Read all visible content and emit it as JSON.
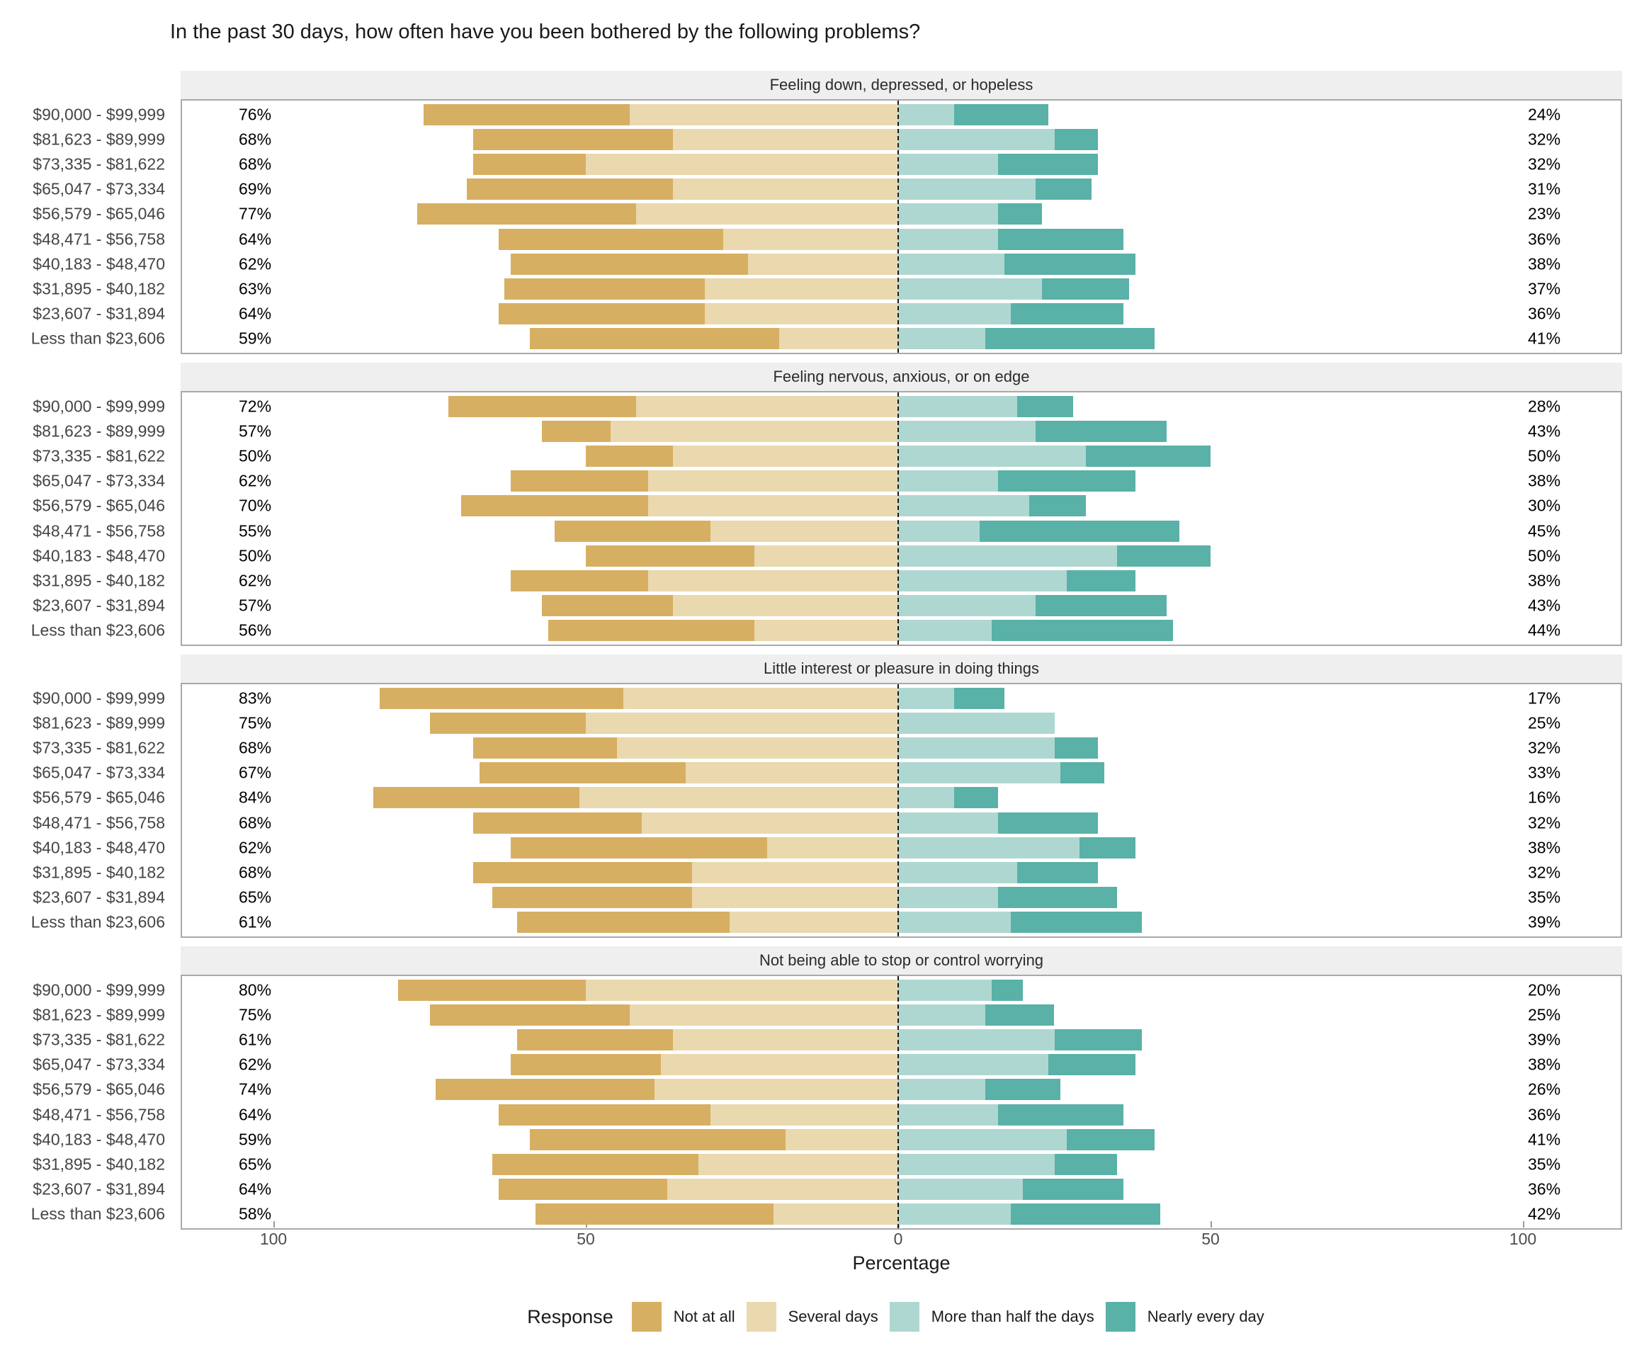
{
  "title": "In the past 30 days, how often have you been bothered by the following problems?",
  "axis": {
    "xlabel": "Percentage",
    "tick_labels": [
      "100",
      "50",
      "0",
      "50",
      "100"
    ],
    "tick_values": [
      -100,
      -50,
      0,
      50,
      100
    ]
  },
  "legend": {
    "title": "Response",
    "items": [
      {
        "key": "not_at_all",
        "label": "Not at all",
        "color": "#D7AF63"
      },
      {
        "key": "several_days",
        "label": "Several days",
        "color": "#EAD8AE"
      },
      {
        "key": "more_than_half_the_days",
        "label": "More than half the days",
        "color": "#AFD7D1"
      },
      {
        "key": "nearly_every_day",
        "label": "Nearly every day",
        "color": "#59B1A7"
      }
    ]
  },
  "style_colors": {
    "panel_header_bg": "#EFEFEF",
    "panel_border": "#A9A9A9",
    "zero_line": "#1a1a1a",
    "income_label": "#454545",
    "tick_label": "#4d4d4d"
  },
  "chart_data": {
    "type": "bar",
    "subtype": "diverging-stacked-likert",
    "unit": "percent",
    "orientation": "horizontal",
    "x_axis": {
      "label": "Percentage",
      "left_max": 100,
      "right_max": 100,
      "center": 0
    },
    "categories": [
      "$90,000 - $99,999",
      "$81,623 - $89,999",
      "$73,335 - $81,622",
      "$65,047 - $73,334",
      "$56,579 - $65,046",
      "$48,471 - $56,758",
      "$40,183 - $48,470",
      "$31,895 - $40,182",
      "$23,607 - $31,894",
      "Less than $23,606"
    ],
    "series_order": [
      "not_at_all",
      "several_days",
      "more_than_half_the_days",
      "nearly_every_day"
    ],
    "left_side_series": [
      "not_at_all",
      "several_days"
    ],
    "right_side_series": [
      "more_than_half_the_days",
      "nearly_every_day"
    ],
    "panels": [
      {
        "question": "Feeling down, depressed, or hopeless",
        "rows": [
          {
            "income": "$90,000 - $99,999",
            "left_label": "76%",
            "right_label": "24%",
            "not_at_all": 33,
            "several_days": 43,
            "more_than_half_the_days": 9,
            "nearly_every_day": 15
          },
          {
            "income": "$81,623 - $89,999",
            "left_label": "68%",
            "right_label": "32%",
            "not_at_all": 32,
            "several_days": 36,
            "more_than_half_the_days": 25,
            "nearly_every_day": 7
          },
          {
            "income": "$73,335 - $81,622",
            "left_label": "68%",
            "right_label": "32%",
            "not_at_all": 18,
            "several_days": 50,
            "more_than_half_the_days": 16,
            "nearly_every_day": 16
          },
          {
            "income": "$65,047 - $73,334",
            "left_label": "69%",
            "right_label": "31%",
            "not_at_all": 33,
            "several_days": 36,
            "more_than_half_the_days": 22,
            "nearly_every_day": 9
          },
          {
            "income": "$56,579 - $65,046",
            "left_label": "77%",
            "right_label": "23%",
            "not_at_all": 35,
            "several_days": 42,
            "more_than_half_the_days": 16,
            "nearly_every_day": 7
          },
          {
            "income": "$48,471 - $56,758",
            "left_label": "64%",
            "right_label": "36%",
            "not_at_all": 36,
            "several_days": 28,
            "more_than_half_the_days": 16,
            "nearly_every_day": 20
          },
          {
            "income": "$40,183 - $48,470",
            "left_label": "62%",
            "right_label": "38%",
            "not_at_all": 38,
            "several_days": 24,
            "more_than_half_the_days": 17,
            "nearly_every_day": 21
          },
          {
            "income": "$31,895 - $40,182",
            "left_label": "63%",
            "right_label": "37%",
            "not_at_all": 32,
            "several_days": 31,
            "more_than_half_the_days": 23,
            "nearly_every_day": 14
          },
          {
            "income": "$23,607 - $31,894",
            "left_label": "64%",
            "right_label": "36%",
            "not_at_all": 33,
            "several_days": 31,
            "more_than_half_the_days": 18,
            "nearly_every_day": 18
          },
          {
            "income": "Less than $23,606",
            "left_label": "59%",
            "right_label": "41%",
            "not_at_all": 40,
            "several_days": 19,
            "more_than_half_the_days": 14,
            "nearly_every_day": 27
          }
        ]
      },
      {
        "question": "Feeling nervous, anxious, or on edge",
        "rows": [
          {
            "income": "$90,000 - $99,999",
            "left_label": "72%",
            "right_label": "28%",
            "not_at_all": 30,
            "several_days": 42,
            "more_than_half_the_days": 19,
            "nearly_every_day": 9
          },
          {
            "income": "$81,623 - $89,999",
            "left_label": "57%",
            "right_label": "43%",
            "not_at_all": 11,
            "several_days": 46,
            "more_than_half_the_days": 22,
            "nearly_every_day": 21
          },
          {
            "income": "$73,335 - $81,622",
            "left_label": "50%",
            "right_label": "50%",
            "not_at_all": 14,
            "several_days": 36,
            "more_than_half_the_days": 30,
            "nearly_every_day": 20
          },
          {
            "income": "$65,047 - $73,334",
            "left_label": "62%",
            "right_label": "38%",
            "not_at_all": 22,
            "several_days": 40,
            "more_than_half_the_days": 16,
            "nearly_every_day": 22
          },
          {
            "income": "$56,579 - $65,046",
            "left_label": "70%",
            "right_label": "30%",
            "not_at_all": 30,
            "several_days": 40,
            "more_than_half_the_days": 21,
            "nearly_every_day": 9
          },
          {
            "income": "$48,471 - $56,758",
            "left_label": "55%",
            "right_label": "45%",
            "not_at_all": 25,
            "several_days": 30,
            "more_than_half_the_days": 13,
            "nearly_every_day": 32
          },
          {
            "income": "$40,183 - $48,470",
            "left_label": "50%",
            "right_label": "50%",
            "not_at_all": 27,
            "several_days": 23,
            "more_than_half_the_days": 35,
            "nearly_every_day": 15
          },
          {
            "income": "$31,895 - $40,182",
            "left_label": "62%",
            "right_label": "38%",
            "not_at_all": 22,
            "several_days": 40,
            "more_than_half_the_days": 27,
            "nearly_every_day": 11
          },
          {
            "income": "$23,607 - $31,894",
            "left_label": "57%",
            "right_label": "43%",
            "not_at_all": 21,
            "several_days": 36,
            "more_than_half_the_days": 22,
            "nearly_every_day": 21
          },
          {
            "income": "Less than $23,606",
            "left_label": "56%",
            "right_label": "44%",
            "not_at_all": 33,
            "several_days": 23,
            "more_than_half_the_days": 15,
            "nearly_every_day": 29
          }
        ]
      },
      {
        "question": "Little interest or pleasure in doing things",
        "rows": [
          {
            "income": "$90,000 - $99,999",
            "left_label": "83%",
            "right_label": "17%",
            "not_at_all": 39,
            "several_days": 44,
            "more_than_half_the_days": 9,
            "nearly_every_day": 8
          },
          {
            "income": "$81,623 - $89,999",
            "left_label": "75%",
            "right_label": "25%",
            "not_at_all": 25,
            "several_days": 50,
            "more_than_half_the_days": 25,
            "nearly_every_day": 0
          },
          {
            "income": "$73,335 - $81,622",
            "left_label": "68%",
            "right_label": "32%",
            "not_at_all": 23,
            "several_days": 45,
            "more_than_half_the_days": 25,
            "nearly_every_day": 7
          },
          {
            "income": "$65,047 - $73,334",
            "left_label": "67%",
            "right_label": "33%",
            "not_at_all": 33,
            "several_days": 34,
            "more_than_half_the_days": 26,
            "nearly_every_day": 7
          },
          {
            "income": "$56,579 - $65,046",
            "left_label": "84%",
            "right_label": "16%",
            "not_at_all": 33,
            "several_days": 51,
            "more_than_half_the_days": 9,
            "nearly_every_day": 7
          },
          {
            "income": "$48,471 - $56,758",
            "left_label": "68%",
            "right_label": "32%",
            "not_at_all": 27,
            "several_days": 41,
            "more_than_half_the_days": 16,
            "nearly_every_day": 16
          },
          {
            "income": "$40,183 - $48,470",
            "left_label": "62%",
            "right_label": "38%",
            "not_at_all": 41,
            "several_days": 21,
            "more_than_half_the_days": 29,
            "nearly_every_day": 9
          },
          {
            "income": "$31,895 - $40,182",
            "left_label": "68%",
            "right_label": "32%",
            "not_at_all": 35,
            "several_days": 33,
            "more_than_half_the_days": 19,
            "nearly_every_day": 13
          },
          {
            "income": "$23,607 - $31,894",
            "left_label": "65%",
            "right_label": "35%",
            "not_at_all": 32,
            "several_days": 33,
            "more_than_half_the_days": 16,
            "nearly_every_day": 19
          },
          {
            "income": "Less than $23,606",
            "left_label": "61%",
            "right_label": "39%",
            "not_at_all": 34,
            "several_days": 27,
            "more_than_half_the_days": 18,
            "nearly_every_day": 21
          }
        ]
      },
      {
        "question": "Not being able to stop or control worrying",
        "rows": [
          {
            "income": "$90,000 - $99,999",
            "left_label": "80%",
            "right_label": "20%",
            "not_at_all": 30,
            "several_days": 50,
            "more_than_half_the_days": 15,
            "nearly_every_day": 5
          },
          {
            "income": "$81,623 - $89,999",
            "left_label": "75%",
            "right_label": "25%",
            "not_at_all": 32,
            "several_days": 43,
            "more_than_half_the_days": 14,
            "nearly_every_day": 11
          },
          {
            "income": "$73,335 - $81,622",
            "left_label": "61%",
            "right_label": "39%",
            "not_at_all": 25,
            "several_days": 36,
            "more_than_half_the_days": 25,
            "nearly_every_day": 14
          },
          {
            "income": "$65,047 - $73,334",
            "left_label": "62%",
            "right_label": "38%",
            "not_at_all": 24,
            "several_days": 38,
            "more_than_half_the_days": 24,
            "nearly_every_day": 14
          },
          {
            "income": "$56,579 - $65,046",
            "left_label": "74%",
            "right_label": "26%",
            "not_at_all": 35,
            "several_days": 39,
            "more_than_half_the_days": 14,
            "nearly_every_day": 12
          },
          {
            "income": "$48,471 - $56,758",
            "left_label": "64%",
            "right_label": "36%",
            "not_at_all": 34,
            "several_days": 30,
            "more_than_half_the_days": 16,
            "nearly_every_day": 20
          },
          {
            "income": "$40,183 - $48,470",
            "left_label": "59%",
            "right_label": "41%",
            "not_at_all": 41,
            "several_days": 18,
            "more_than_half_the_days": 27,
            "nearly_every_day": 14
          },
          {
            "income": "$31,895 - $40,182",
            "left_label": "65%",
            "right_label": "35%",
            "not_at_all": 33,
            "several_days": 32,
            "more_than_half_the_days": 25,
            "nearly_every_day": 10
          },
          {
            "income": "$23,607 - $31,894",
            "left_label": "64%",
            "right_label": "36%",
            "not_at_all": 27,
            "several_days": 37,
            "more_than_half_the_days": 20,
            "nearly_every_day": 16
          },
          {
            "income": "Less than $23,606",
            "left_label": "58%",
            "right_label": "42%",
            "not_at_all": 38,
            "several_days": 20,
            "more_than_half_the_days": 18,
            "nearly_every_day": 24
          }
        ]
      }
    ]
  }
}
